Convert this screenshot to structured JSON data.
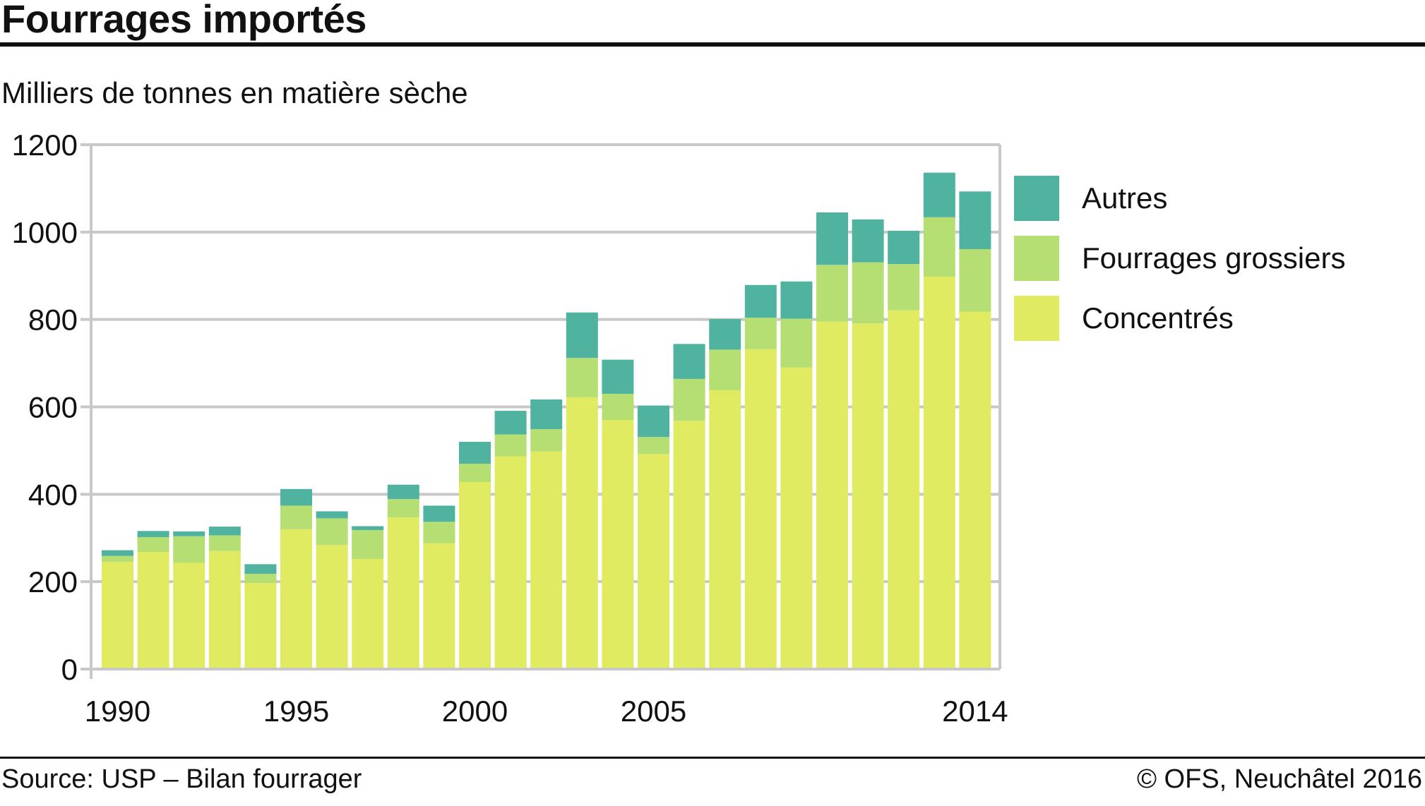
{
  "header": {
    "title": "Fourrages importés",
    "unit_label": "Milliers de tonnes en matière sèche"
  },
  "footer": {
    "source": "Source: USP – Bilan fourrager",
    "copyright": "© OFS, Neuchâtel 2016"
  },
  "colors": {
    "autres": "#4fb3a0",
    "fourrages_grossiers": "#b6df73",
    "concentres": "#e0eb62",
    "grid": "#c8c8c8",
    "text": "#111111"
  },
  "chart_data": {
    "type": "bar",
    "stacked": true,
    "x": [
      1990,
      1991,
      1992,
      1993,
      1994,
      1995,
      1996,
      1997,
      1998,
      1999,
      2000,
      2001,
      2002,
      2003,
      2004,
      2005,
      2006,
      2007,
      2008,
      2009,
      2010,
      2011,
      2012,
      2013,
      2014
    ],
    "x_tick_labels": [
      "1990",
      "1995",
      "2000",
      "2005",
      "2014"
    ],
    "x_tick_years": [
      1990,
      1995,
      2000,
      2005,
      2014
    ],
    "ylim": [
      0,
      1200
    ],
    "y_ticks": [
      0,
      200,
      400,
      600,
      800,
      1000,
      1200
    ],
    "grid": true,
    "legend_position": "right",
    "series": [
      {
        "name": "Concentrés",
        "color": "#e0eb62",
        "values": [
          245,
          268,
          243,
          270,
          197,
          320,
          284,
          252,
          347,
          288,
          428,
          487,
          498,
          622,
          570,
          492,
          568,
          638,
          732,
          690,
          795,
          791,
          821,
          898,
          818
        ]
      },
      {
        "name": "Fourrages grossiers",
        "color": "#b6df73",
        "values": [
          14,
          34,
          61,
          36,
          21,
          54,
          61,
          66,
          42,
          49,
          42,
          50,
          51,
          90,
          60,
          39,
          96,
          93,
          72,
          112,
          130,
          140,
          106,
          136,
          143
        ]
      },
      {
        "name": "Autres",
        "color": "#4fb3a0",
        "values": [
          13,
          14,
          11,
          20,
          22,
          38,
          16,
          9,
          33,
          37,
          50,
          54,
          68,
          104,
          78,
          72,
          80,
          70,
          75,
          85,
          120,
          98,
          76,
          102,
          132
        ]
      }
    ],
    "legend": [
      "Autres",
      "Fourrages grossiers",
      "Concentrés"
    ]
  }
}
